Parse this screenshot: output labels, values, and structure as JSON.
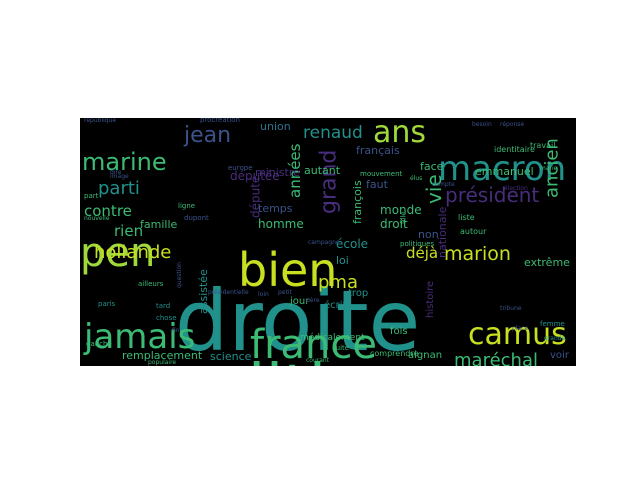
{
  "figure": {
    "background": "#ffffff",
    "cloud_background": "#000000"
  },
  "palette": {
    "yellow": "#c8e020",
    "lime": "#a0d93b",
    "green": "#3cbb75",
    "teal": "#21918c",
    "tealblue": "#2c728e",
    "blue": "#3b528b",
    "purple": "#472d7b",
    "dark": "#440154"
  },
  "words": [
    {
      "text": "droite",
      "color": "teal"
    },
    {
      "text": "politique",
      "color": "green"
    },
    {
      "text": "bien",
      "color": "yellow"
    },
    {
      "text": "pen",
      "color": "lime"
    },
    {
      "text": "france",
      "color": "green"
    },
    {
      "text": "macron",
      "color": "teal"
    },
    {
      "text": "ans",
      "color": "lime"
    },
    {
      "text": "jamais",
      "color": "green"
    },
    {
      "text": "camus",
      "color": "yellow"
    },
    {
      "text": "marine",
      "color": "green"
    },
    {
      "text": "jean",
      "color": "blue"
    },
    {
      "text": "président",
      "color": "purple"
    },
    {
      "text": "parti",
      "color": "teal"
    },
    {
      "text": "hollande",
      "color": "yellow"
    },
    {
      "text": "marion",
      "color": "yellow"
    },
    {
      "text": "renaud",
      "color": "teal"
    },
    {
      "text": "contre",
      "color": "green"
    },
    {
      "text": "rien",
      "color": "green"
    },
    {
      "text": "vie",
      "color": "green"
    },
    {
      "text": "grand",
      "color": "purple"
    },
    {
      "text": "pma",
      "color": "yellow"
    },
    {
      "text": "maréchal",
      "color": "green"
    },
    {
      "text": "ancien",
      "color": "green"
    },
    {
      "text": "déjà",
      "color": "yellow"
    },
    {
      "text": "années",
      "color": "green"
    },
    {
      "text": "remplacement",
      "color": "green"
    },
    {
      "text": "science",
      "color": "teal"
    },
    {
      "text": "emmanuel",
      "color": "green"
    },
    {
      "text": "extrême",
      "color": "green"
    },
    {
      "text": "face",
      "color": "green"
    },
    {
      "text": "union",
      "color": "tealblue"
    },
    {
      "text": "députée",
      "color": "purple"
    },
    {
      "text": "ministre",
      "color": "purple"
    },
    {
      "text": "autant",
      "color": "green"
    },
    {
      "text": "famille",
      "color": "green"
    },
    {
      "text": "temps",
      "color": "blue"
    },
    {
      "text": "homme",
      "color": "green"
    },
    {
      "text": "député",
      "color": "purple"
    },
    {
      "text": "monde",
      "color": "green"
    },
    {
      "text": "droit",
      "color": "green"
    },
    {
      "text": "françois",
      "color": "green"
    },
    {
      "text": "école",
      "color": "teal"
    },
    {
      "text": "loi",
      "color": "teal"
    },
    {
      "text": "non",
      "color": "blue"
    },
    {
      "text": "faut",
      "color": "blue"
    },
    {
      "text": "français",
      "color": "blue"
    },
    {
      "text": "assistée",
      "color": "teal"
    },
    {
      "text": "jour",
      "color": "green"
    },
    {
      "text": "écrit",
      "color": "teal"
    },
    {
      "text": "trop",
      "color": "teal"
    },
    {
      "text": "fois",
      "color": "green"
    },
    {
      "text": "aignan",
      "color": "green"
    },
    {
      "text": "voir",
      "color": "blue"
    },
    {
      "text": "histoire",
      "color": "purple"
    },
    {
      "text": "nationale",
      "color": "purple"
    },
    {
      "text": "médicalement",
      "color": "green"
    },
    {
      "text": "procréation",
      "color": "blue"
    },
    {
      "text": "identitaire",
      "color": "green"
    },
    {
      "text": "travail",
      "color": "green"
    },
    {
      "text": "ligne",
      "color": "green"
    },
    {
      "text": "dupont",
      "color": "blue"
    },
    {
      "text": "liste",
      "color": "green"
    },
    {
      "text": "autour",
      "color": "green"
    },
    {
      "text": "comprendre",
      "color": "green"
    },
    {
      "text": "mouvement",
      "color": "green"
    },
    {
      "text": "politiques",
      "color": "green"
    },
    {
      "text": "tard",
      "color": "teal"
    },
    {
      "text": "chose",
      "color": "teal"
    },
    {
      "text": "paris",
      "color": "teal"
    },
    {
      "text": "gauche",
      "color": "green"
    },
    {
      "text": "part",
      "color": "green"
    },
    {
      "text": "europe",
      "color": "blue"
    },
    {
      "text": "marie",
      "color": "green"
    },
    {
      "text": "suite",
      "color": "green"
    },
    {
      "text": "fille",
      "color": "green"
    },
    {
      "text": "élus",
      "color": "green"
    },
    {
      "text": "ailleurs",
      "color": "green"
    },
    {
      "text": "campagne",
      "color": "blue"
    },
    {
      "text": "présidentielle",
      "color": "blue"
    },
    {
      "text": "nouvelle",
      "color": "green"
    },
    {
      "text": "république",
      "color": "blue"
    },
    {
      "text": "populaire",
      "color": "green"
    },
    {
      "text": "question",
      "color": "blue"
    },
    {
      "text": "compte",
      "color": "blue"
    },
    {
      "text": "courant",
      "color": "green"
    },
    {
      "text": "besoin",
      "color": "blue"
    },
    {
      "text": "réponse",
      "color": "blue"
    },
    {
      "text": "père",
      "color": "blue"
    },
    {
      "text": "tribune",
      "color": "blue"
    },
    {
      "text": "femme",
      "color": "teal"
    },
    {
      "text": "fin",
      "color": "blue"
    },
    {
      "text": "grande",
      "color": "teal"
    },
    {
      "text": "loin",
      "color": "blue"
    },
    {
      "text": "petit",
      "color": "blue"
    },
    {
      "text": "place",
      "color": "blue"
    },
    {
      "text": "dire",
      "color": "blue"
    },
    {
      "text": "image",
      "color": "blue"
    },
    {
      "text": "élection",
      "color": "purple"
    }
  ]
}
